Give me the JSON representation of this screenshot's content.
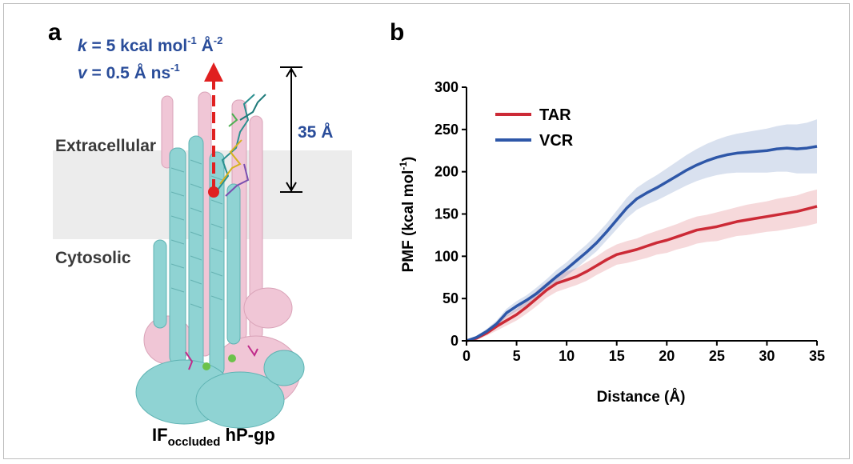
{
  "panel_a": {
    "label": "a",
    "force_constant": {
      "var": "k",
      "eq": " = 5 kcal mol",
      "exp1": "-1",
      "unit": " Å",
      "exp2": "-2"
    },
    "velocity": {
      "var": "v",
      "eq": " = 0.5 Å ns",
      "exp": "-1"
    },
    "distance_label": "35 Å",
    "extracellular": "Extracellular",
    "cytosolic": "Cytosolic",
    "caption_main": "IF",
    "caption_sub": "occluded",
    "caption_tail": " hP-gp",
    "colors": {
      "chain_a": "#8fd3d3",
      "chain_b": "#f0c6d6",
      "arrow": "#e02020",
      "membrane": "#ececec"
    }
  },
  "panel_b": {
    "label": "b"
  },
  "chart_data": {
    "type": "line",
    "title": "",
    "xlabel": "Distance (Å)",
    "ylabel": "PMF (kcal mol",
    "ylabel_exp": "-1",
    "ylabel_close": ")",
    "xlim": [
      0,
      35
    ],
    "ylim": [
      0,
      300
    ],
    "xticks": [
      0,
      5,
      10,
      15,
      20,
      25,
      30,
      35
    ],
    "yticks": [
      0,
      50,
      100,
      150,
      200,
      250,
      300
    ],
    "grid": false,
    "legend_position": "top-left",
    "series": [
      {
        "name": "TAR",
        "color": "#cc2a36",
        "x": [
          0,
          1,
          2,
          3,
          4,
          5,
          6,
          7,
          8,
          9,
          10,
          11,
          12,
          13,
          14,
          15,
          16,
          17,
          18,
          19,
          20,
          21,
          22,
          23,
          24,
          25,
          26,
          27,
          28,
          29,
          30,
          31,
          32,
          33,
          34,
          35
        ],
        "y": [
          0,
          3,
          9,
          17,
          24,
          31,
          40,
          50,
          60,
          68,
          72,
          76,
          82,
          89,
          96,
          102,
          105,
          108,
          112,
          116,
          119,
          123,
          127,
          131,
          133,
          135,
          138,
          141,
          143,
          145,
          147,
          149,
          151,
          153,
          156,
          159
        ],
        "band": [
          0,
          2,
          3,
          5,
          6,
          7,
          8,
          9,
          9,
          10,
          10,
          10,
          11,
          11,
          12,
          12,
          13,
          13,
          14,
          14,
          15,
          15,
          16,
          16,
          16,
          17,
          17,
          17,
          18,
          18,
          18,
          19,
          19,
          19,
          20,
          20
        ]
      },
      {
        "name": "VCR",
        "color": "#2e57a8",
        "x": [
          0,
          1,
          2,
          3,
          4,
          5,
          6,
          7,
          8,
          9,
          10,
          11,
          12,
          13,
          14,
          15,
          16,
          17,
          18,
          19,
          20,
          21,
          22,
          23,
          24,
          25,
          26,
          27,
          28,
          29,
          30,
          31,
          32,
          33,
          34,
          35
        ],
        "y": [
          0,
          4,
          11,
          20,
          33,
          41,
          48,
          56,
          66,
          76,
          85,
          95,
          105,
          116,
          129,
          143,
          157,
          168,
          175,
          181,
          188,
          195,
          202,
          208,
          213,
          217,
          220,
          222,
          223,
          224,
          225,
          227,
          228,
          227,
          228,
          230
        ],
        "band": [
          0,
          2,
          3,
          4,
          5,
          6,
          6,
          7,
          7,
          8,
          8,
          9,
          9,
          10,
          10,
          11,
          12,
          13,
          14,
          15,
          16,
          17,
          18,
          19,
          20,
          21,
          22,
          23,
          24,
          25,
          26,
          27,
          28,
          29,
          30,
          32
        ]
      }
    ]
  }
}
